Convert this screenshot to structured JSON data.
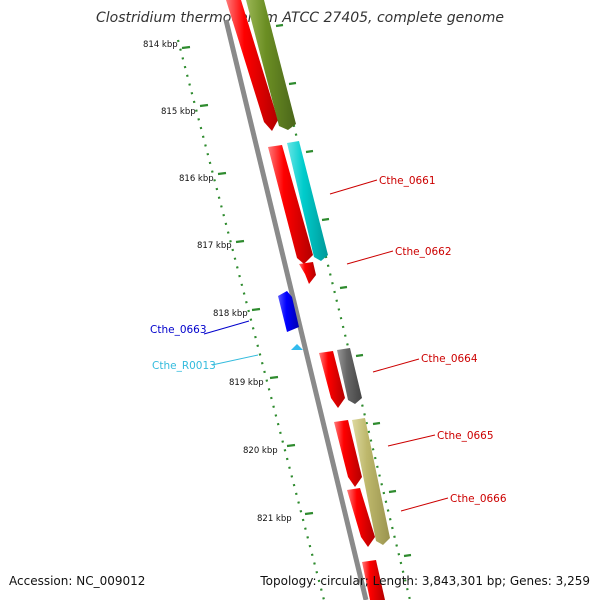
{
  "title": "Clostridium thermocellum ATCC 27405, complete genome",
  "footer": {
    "accession": "Accession: NC_009012",
    "topology": "Topology: circular; Length: 3,843,301 bp; Genes: 3,259"
  },
  "ticks": [
    "814 kbp",
    "815 kbp",
    "816 kbp",
    "817 kbp",
    "818 kbp",
    "819 kbp",
    "820 kbp",
    "821 kbp"
  ],
  "gene_labels": [
    {
      "text": "Cthe_0661",
      "color": "#cc0000"
    },
    {
      "text": "Cthe_0662",
      "color": "#cc0000"
    },
    {
      "text": "Cthe_0663",
      "color": "#0000cc"
    },
    {
      "text": "Cthe_R0013",
      "color": "#33bbdd"
    },
    {
      "text": "Cthe_0664",
      "color": "#cc0000"
    },
    {
      "text": "Cthe_0665",
      "color": "#cc0000"
    },
    {
      "text": "Cthe_0666",
      "color": "#cc0000"
    }
  ],
  "colors": {
    "cds": "#ff0000",
    "cog_green": "#6b8e23",
    "cog_cyan": "#00cccc",
    "cog_gray": "#666666",
    "cog_khaki": "#bdb76b",
    "gene_reverse": "#0000ff",
    "rna": "#33bbee",
    "tick": "#008000"
  }
}
